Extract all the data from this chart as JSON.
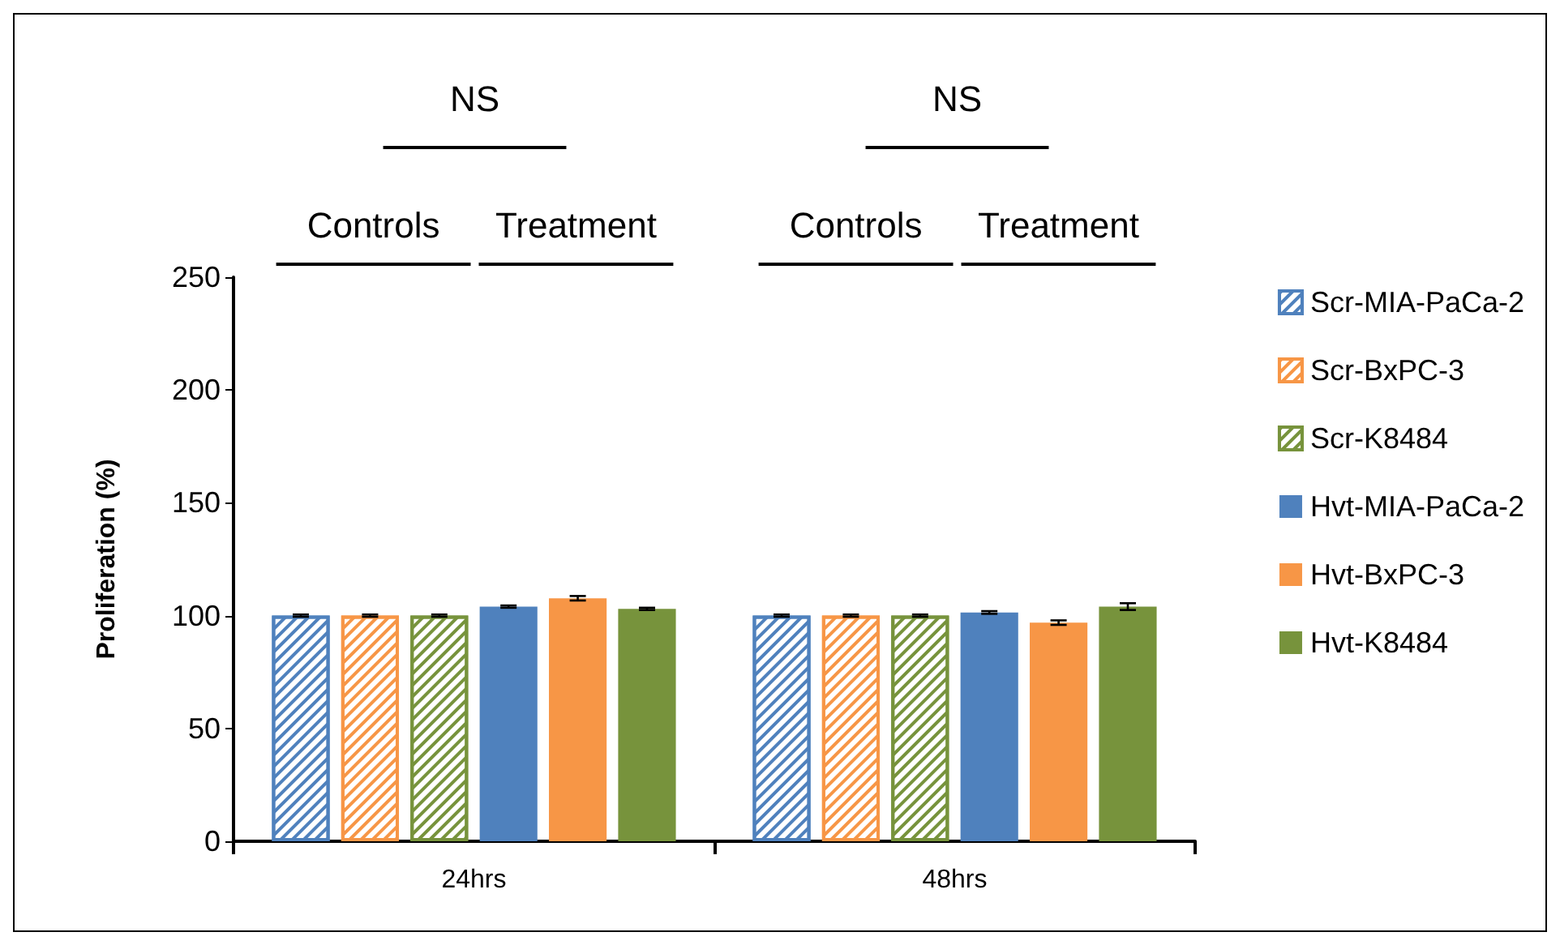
{
  "chart_data": {
    "type": "bar",
    "ylabel": "Proliferation (%)",
    "categories": [
      "24hrs",
      "48hrs"
    ],
    "series": [
      {
        "name": "Scr-MIA-PaCa-2",
        "color": "#4f81bd",
        "values": [
          100,
          100
        ],
        "errors": [
          0.5,
          0.5
        ]
      },
      {
        "name": "Scr-BxPC-3",
        "color": "#f79646",
        "values": [
          100,
          100
        ],
        "errors": [
          0.5,
          0.5
        ]
      },
      {
        "name": "Scr-K8484",
        "color": "#77933c",
        "values": [
          100,
          100
        ],
        "errors": [
          0.5,
          0.5
        ]
      },
      {
        "name": "Hvt-MIA-PaCa-2",
        "color": "#4f81bd",
        "values": [
          104,
          101.4
        ],
        "errors": [
          0.5,
          0.6
        ]
      },
      {
        "name": "Hvt-BxPC-3",
        "color": "#f79646",
        "values": [
          107.7,
          96.9
        ],
        "errors": [
          1,
          1
        ]
      },
      {
        "name": "Hvt-K8484",
        "color": "#77933c",
        "values": [
          103,
          104
        ],
        "errors": [
          0.5,
          1.5
        ]
      }
    ],
    "ylim": [
      0,
      250
    ],
    "yticks": [
      0,
      50,
      100,
      150,
      200,
      250
    ],
    "legend": "right",
    "annotations": [
      "NS",
      "Controls",
      "Treatment",
      "NS",
      "Controls",
      "Treatment"
    ]
  }
}
